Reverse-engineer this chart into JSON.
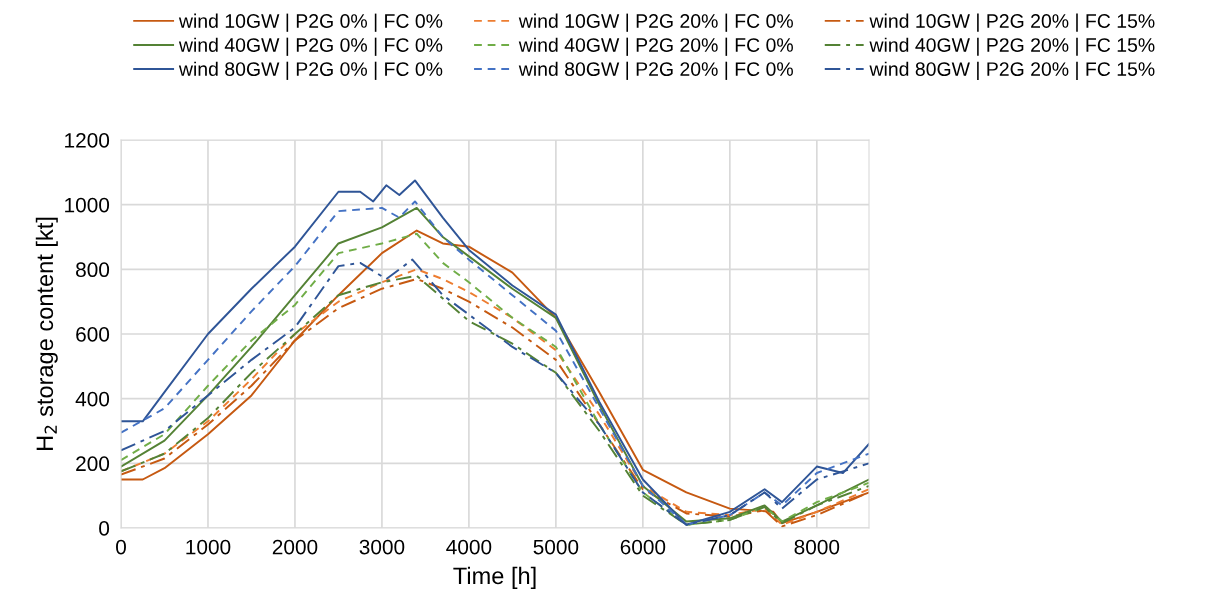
{
  "chart_data": {
    "type": "line",
    "xlabel": "Time [h]",
    "ylabel": "H$_{2}$ storage content [kt]",
    "xlim": [
      0,
      8600
    ],
    "xticks": [
      0,
      1000,
      2000,
      3000,
      4000,
      5000,
      6000,
      7000,
      8000
    ],
    "ylim": [
      0,
      1200
    ],
    "yticks": [
      0,
      200,
      400,
      600,
      800,
      1000,
      1200
    ],
    "grid": true,
    "legend": "top",
    "marker": "none",
    "series": [
      {
        "name": "wind 10GW | P2G 0% | FC 0%",
        "color": "#c65911",
        "line_style": "solid",
        "x": [
          0,
          250,
          500,
          1000,
          1500,
          2000,
          2500,
          3000,
          3400,
          3700,
          4000,
          4500,
          5000,
          5500,
          6000,
          6500,
          7000,
          7500,
          7600,
          8000,
          8600
        ],
        "values": [
          150,
          150,
          185,
          290,
          410,
          580,
          720,
          850,
          920,
          880,
          870,
          790,
          650,
          420,
          180,
          110,
          60,
          50,
          15,
          50,
          110
        ]
      },
      {
        "name": "wind 10GW | P2G 20% | FC 0%",
        "color": "#ed7d31",
        "line_style": "dashed",
        "x": [
          0,
          500,
          1000,
          1500,
          2000,
          2500,
          3000,
          3400,
          3700,
          4000,
          4500,
          5000,
          5500,
          6000,
          6500,
          7000,
          7400,
          7600,
          8000,
          8600
        ],
        "values": [
          175,
          230,
          330,
          460,
          600,
          700,
          760,
          800,
          770,
          730,
          650,
          550,
          350,
          130,
          50,
          40,
          60,
          10,
          50,
          120
        ]
      },
      {
        "name": "wind 10GW | P2G 20% | FC 15%",
        "color": "#c65911",
        "line_style": "dashdot",
        "x": [
          0,
          500,
          1000,
          1500,
          2000,
          2500,
          3000,
          3400,
          3700,
          4000,
          4500,
          5000,
          5500,
          6000,
          6500,
          7000,
          7400,
          7600,
          8000,
          8600
        ],
        "values": [
          165,
          215,
          320,
          440,
          580,
          680,
          740,
          770,
          740,
          700,
          620,
          520,
          320,
          120,
          45,
          35,
          55,
          5,
          40,
          110
        ]
      },
      {
        "name": "wind 40GW | P2G 0% | FC 0%",
        "color": "#548235",
        "line_style": "solid",
        "x": [
          0,
          500,
          1000,
          1500,
          2000,
          2500,
          3000,
          3400,
          3700,
          4000,
          4500,
          5000,
          5500,
          6000,
          6500,
          7000,
          7400,
          7600,
          8000,
          8600
        ],
        "values": [
          190,
          270,
          410,
          560,
          720,
          880,
          930,
          990,
          900,
          840,
          740,
          650,
          380,
          130,
          20,
          30,
          70,
          20,
          70,
          150
        ]
      },
      {
        "name": "wind 40GW | P2G 20% | FC 0%",
        "color": "#70ad47",
        "line_style": "dashed",
        "x": [
          0,
          500,
          1000,
          1500,
          2000,
          2500,
          3000,
          3400,
          3700,
          4000,
          4500,
          5000,
          5500,
          6000,
          6500,
          7000,
          7400,
          7600,
          8000,
          8600
        ],
        "values": [
          210,
          290,
          440,
          580,
          690,
          850,
          880,
          910,
          820,
          760,
          650,
          560,
          320,
          110,
          10,
          25,
          65,
          20,
          80,
          140
        ]
      },
      {
        "name": "wind 40GW | P2G 20% | FC 15%",
        "color": "#548235",
        "line_style": "dashdot",
        "x": [
          0,
          500,
          1000,
          1500,
          2000,
          2500,
          3000,
          3400,
          3700,
          4000,
          4500,
          5000,
          5500,
          6000,
          6500,
          7000,
          7400,
          7600,
          8000,
          8600
        ],
        "values": [
          175,
          230,
          340,
          480,
          600,
          720,
          760,
          780,
          710,
          640,
          570,
          480,
          300,
          100,
          10,
          25,
          65,
          15,
          70,
          130
        ]
      },
      {
        "name": "wind 80GW | P2G 0% | FC 0%",
        "color": "#2f5597",
        "line_style": "solid",
        "x": [
          0,
          250,
          500,
          1000,
          1500,
          2000,
          2500,
          2750,
          2900,
          3050,
          3200,
          3380,
          3700,
          4000,
          4500,
          5000,
          5500,
          6000,
          6500,
          7000,
          7400,
          7600,
          8000,
          8300,
          8600
        ],
        "values": [
          330,
          330,
          420,
          600,
          740,
          870,
          1040,
          1040,
          1010,
          1060,
          1030,
          1075,
          960,
          860,
          750,
          660,
          390,
          150,
          10,
          50,
          120,
          80,
          190,
          170,
          260
        ]
      },
      {
        "name": "wind 80GW | P2G 20% | FC 0%",
        "color": "#4472c4",
        "line_style": "dashed",
        "x": [
          0,
          500,
          1000,
          1500,
          2000,
          2500,
          3000,
          3200,
          3380,
          3700,
          4000,
          4500,
          5000,
          5500,
          6000,
          6500,
          7000,
          7400,
          7600,
          8000,
          8600
        ],
        "values": [
          295,
          370,
          520,
          670,
          810,
          980,
          990,
          960,
          1010,
          900,
          830,
          720,
          610,
          370,
          130,
          10,
          40,
          110,
          70,
          170,
          230
        ]
      },
      {
        "name": "wind 80GW | P2G 20% | FC 15%",
        "color": "#2f5597",
        "line_style": "dashdot",
        "x": [
          0,
          500,
          1000,
          1500,
          2000,
          2500,
          2750,
          3050,
          3350,
          3700,
          4000,
          4500,
          5000,
          5500,
          6000,
          6500,
          7000,
          7400,
          7600,
          8000,
          8600
        ],
        "values": [
          240,
          300,
          410,
          520,
          620,
          810,
          820,
          770,
          830,
          720,
          660,
          560,
          480,
          320,
          110,
          10,
          40,
          110,
          60,
          150,
          200
        ]
      }
    ]
  }
}
